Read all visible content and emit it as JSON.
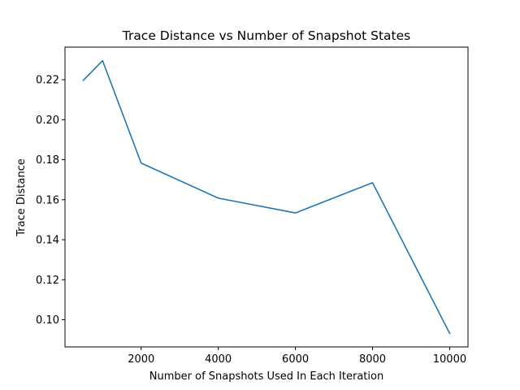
{
  "chart_data": {
    "type": "line",
    "title": "Trace Distance vs Number of Snapshot States",
    "xlabel": "Number of Snapshots Used In Each Iteration",
    "ylabel": "Trace Distance",
    "x": [
      500,
      1000,
      2000,
      4000,
      6000,
      8000,
      10000
    ],
    "series": [
      {
        "values": [
          0.2197,
          0.2295,
          0.1783,
          0.1608,
          0.1534,
          0.1685,
          0.0932
        ],
        "color": "#1f77b4"
      }
    ],
    "xlim": [
      25,
      10475
    ],
    "ylim": [
      0.0864,
      0.2363
    ],
    "xticks": [
      {
        "value": 2000,
        "label": "2000"
      },
      {
        "value": 4000,
        "label": "4000"
      },
      {
        "value": 6000,
        "label": "6000"
      },
      {
        "value": 8000,
        "label": "8000"
      },
      {
        "value": 10000,
        "label": "10000"
      }
    ],
    "yticks": [
      {
        "value": 0.1,
        "label": "0.10"
      },
      {
        "value": 0.12,
        "label": "0.12"
      },
      {
        "value": 0.14,
        "label": "0.14"
      },
      {
        "value": 0.16,
        "label": "0.16"
      },
      {
        "value": 0.18,
        "label": "0.18"
      },
      {
        "value": 0.2,
        "label": "0.20"
      },
      {
        "value": 0.22,
        "label": "0.22"
      }
    ],
    "grid": false,
    "legend": "none"
  }
}
